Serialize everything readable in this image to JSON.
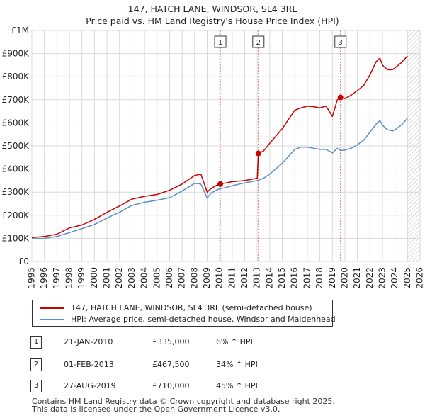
{
  "header": {
    "title_line1": "147, HATCH LANE, WINDSOR, SL4 3RL",
    "title_line2": "Price paid vs. HM Land Registry's House Price Index (HPI)"
  },
  "chart_data": {
    "type": "line",
    "x_range": [
      1995,
      2026
    ],
    "ylim": [
      0,
      1000000
    ],
    "y_ticks": [
      0,
      100000,
      200000,
      300000,
      400000,
      500000,
      600000,
      700000,
      800000,
      900000,
      1000000
    ],
    "y_tick_labels": [
      "£0",
      "£100K",
      "£200K",
      "£300K",
      "£400K",
      "£500K",
      "£600K",
      "£700K",
      "£800K",
      "£900K",
      "£1M"
    ],
    "x_ticks": [
      1995,
      1996,
      1997,
      1998,
      1999,
      2000,
      2001,
      2002,
      2003,
      2004,
      2005,
      2006,
      2007,
      2008,
      2009,
      2010,
      2011,
      2012,
      2013,
      2014,
      2015,
      2016,
      2017,
      2018,
      2019,
      2020,
      2021,
      2022,
      2023,
      2024,
      2025,
      2026
    ],
    "grid": true,
    "hatched_from": 2025.0,
    "series": [
      {
        "name": "147, HATCH LANE, WINDSOR, SL4 3RL (semi-detached house)",
        "color": "#cc0000",
        "x": [
          1995.0,
          1996.0,
          1997.0,
          1998.0,
          1999.0,
          2000.0,
          2001.0,
          2002.0,
          2003.0,
          2004.0,
          2005.0,
          2006.0,
          2007.0,
          2008.0,
          2008.5,
          2009.0,
          2009.3,
          2009.7,
          2010.05,
          2010.5,
          2011.0,
          2012.0,
          2013.0,
          2013.09,
          2013.5,
          2014.0,
          2015.0,
          2016.0,
          2016.5,
          2017.0,
          2017.5,
          2018.0,
          2018.5,
          2019.0,
          2019.4,
          2019.65,
          2020.0,
          2020.5,
          2021.0,
          2021.5,
          2022.0,
          2022.5,
          2022.8,
          2023.0,
          2023.4,
          2023.8,
          2024.0,
          2024.5,
          2025.0
        ],
        "values": [
          103000,
          108000,
          118000,
          145000,
          158000,
          182000,
          213000,
          240000,
          270000,
          282000,
          290000,
          308000,
          335000,
          372000,
          378000,
          300000,
          315000,
          328000,
          335000,
          340000,
          345000,
          350000,
          360000,
          467500,
          478000,
          512000,
          575000,
          655000,
          665000,
          672000,
          670000,
          665000,
          672000,
          628000,
          700000,
          710000,
          705000,
          720000,
          740000,
          762000,
          808000,
          865000,
          880000,
          850000,
          830000,
          830000,
          838000,
          860000,
          890000
        ]
      },
      {
        "name": "HPI: Average price, semi-detached house, Windsor and Maidenhead",
        "color": "#5b8fc9",
        "x": [
          1995.0,
          1996.0,
          1997.0,
          1998.0,
          1999.0,
          2000.0,
          2001.0,
          2002.0,
          2003.0,
          2004.0,
          2005.0,
          2006.0,
          2007.0,
          2008.0,
          2008.5,
          2009.0,
          2009.3,
          2009.7,
          2010.05,
          2010.5,
          2011.0,
          2012.0,
          2013.0,
          2013.5,
          2014.0,
          2015.0,
          2016.0,
          2016.5,
          2017.0,
          2017.5,
          2018.0,
          2018.5,
          2019.0,
          2019.4,
          2019.65,
          2020.0,
          2020.5,
          2021.0,
          2021.5,
          2022.0,
          2022.5,
          2022.8,
          2023.0,
          2023.4,
          2023.8,
          2024.0,
          2024.5,
          2025.0
        ],
        "values": [
          98000,
          100000,
          108000,
          125000,
          142000,
          160000,
          188000,
          213000,
          243000,
          256000,
          265000,
          276000,
          305000,
          338000,
          335000,
          275000,
          295000,
          308000,
          315000,
          320000,
          328000,
          340000,
          350000,
          360000,
          378000,
          425000,
          485000,
          495000,
          495000,
          490000,
          485000,
          485000,
          470000,
          490000,
          480000,
          482000,
          490000,
          505000,
          525000,
          560000,
          595000,
          610000,
          590000,
          570000,
          565000,
          570000,
          590000,
          620000
        ]
      }
    ],
    "markers": [
      {
        "label": "1",
        "x": 2010.05,
        "value": 335000
      },
      {
        "label": "2",
        "x": 2013.09,
        "value": 467500
      },
      {
        "label": "3",
        "x": 2019.65,
        "value": 710000
      }
    ]
  },
  "legend": {
    "items": [
      {
        "label": "147, HATCH LANE, WINDSOR, SL4 3RL (semi-detached house)",
        "color": "#cc0000"
      },
      {
        "label": "HPI: Average price, semi-detached house, Windsor and Maidenhead",
        "color": "#5b8fc9"
      }
    ]
  },
  "sales": [
    {
      "num": "1",
      "date": "21-JAN-2010",
      "price": "£335,000",
      "hpi": "6% ↑ HPI"
    },
    {
      "num": "2",
      "date": "01-FEB-2013",
      "price": "£467,500",
      "hpi": "34% ↑ HPI"
    },
    {
      "num": "3",
      "date": "27-AUG-2019",
      "price": "£710,000",
      "hpi": "45% ↑ HPI"
    }
  ],
  "footer": {
    "line1": "Contains HM Land Registry data © Crown copyright and database right 2025.",
    "line2": "This data is licensed under the Open Government Licence v3.0."
  }
}
